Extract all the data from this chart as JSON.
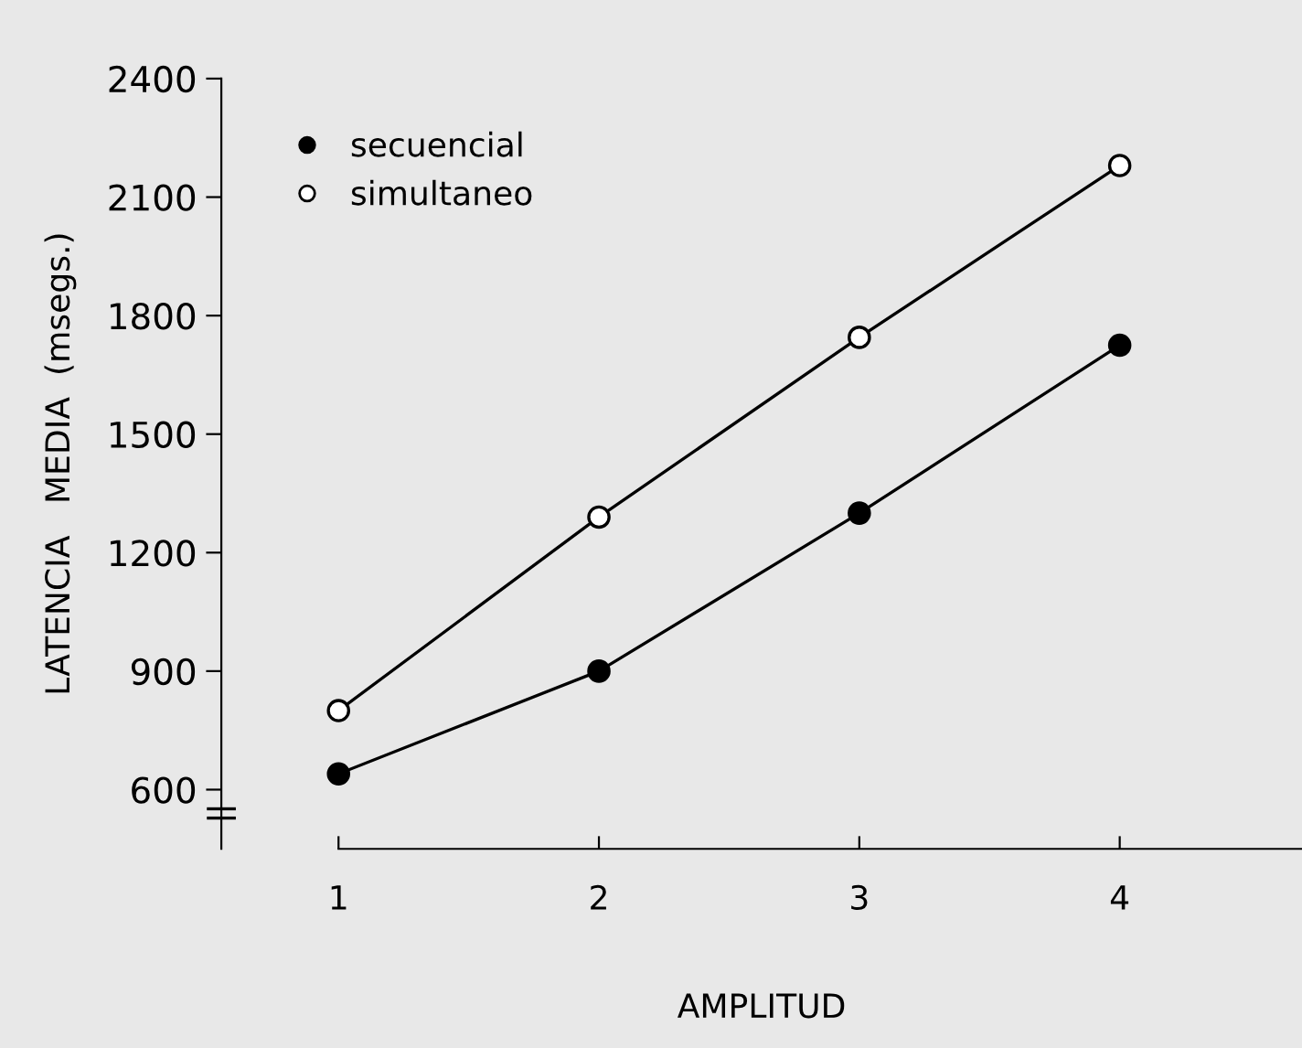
{
  "chart_data": {
    "type": "line",
    "xlabel": "AMPLITUD",
    "ylabel": "LATENCIA   MEDIA  (msegs.)",
    "x": [
      1,
      2,
      3,
      4
    ],
    "series": [
      {
        "name": "secuencial",
        "color": "#000000",
        "values": [
          640,
          900,
          1300,
          1725
        ],
        "colors": [
          "#000000",
          "#000000",
          "#000000",
          "#000000"
        ]
      },
      {
        "name": "simultaneo",
        "color": "#000000",
        "values": [
          800,
          1290,
          1745,
          2180
        ],
        "colors": [
          "#ffffff",
          "#ffffff",
          "#ffffff",
          "#ffffff"
        ]
      }
    ],
    "xlim": [
      0.55,
      4.7
    ],
    "ylim": [
      450,
      2400
    ],
    "xticks": [
      1,
      2,
      3,
      4
    ],
    "yticks": [
      600,
      900,
      1200,
      1500,
      1800,
      2100,
      2400
    ],
    "marker": "circle",
    "line_style": "solid",
    "grid": false,
    "legend": "top left"
  }
}
